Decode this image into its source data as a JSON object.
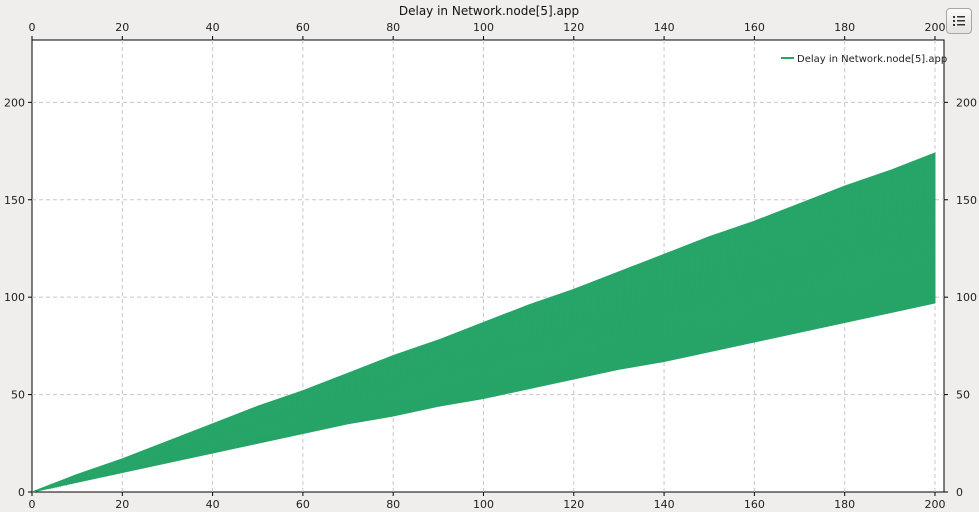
{
  "toolbar": {
    "legend_toggle_icon": "list-icon"
  },
  "chart_data": {
    "type": "line",
    "title": "Delay in Network.node[5].app",
    "xlabel": "",
    "ylabel": "",
    "xlim": [
      0,
      202
    ],
    "ylim": [
      0,
      232
    ],
    "x_ticks": [
      0,
      20,
      40,
      60,
      80,
      100,
      120,
      140,
      160,
      180,
      200
    ],
    "y_ticks": [
      0,
      50,
      100,
      150,
      200
    ],
    "grid": true,
    "legend_position": "top-right",
    "series": [
      {
        "name": "Delay in Network.node[5].app",
        "color": "#27a468",
        "x": [
          0,
          10,
          20,
          30,
          40,
          50,
          60,
          70,
          80,
          90,
          100,
          110,
          120,
          130,
          140,
          150,
          160,
          170,
          180,
          190,
          200
        ],
        "lower": [
          0,
          5,
          10,
          15,
          20,
          25,
          30,
          35,
          39,
          44,
          48,
          53,
          58,
          63,
          67,
          72,
          77,
          82,
          87,
          92,
          97
        ],
        "upper": [
          0,
          9,
          17,
          26,
          35,
          44,
          52,
          61,
          70,
          78,
          87,
          96,
          104,
          113,
          122,
          131,
          139,
          148,
          157,
          165,
          174
        ]
      }
    ]
  }
}
